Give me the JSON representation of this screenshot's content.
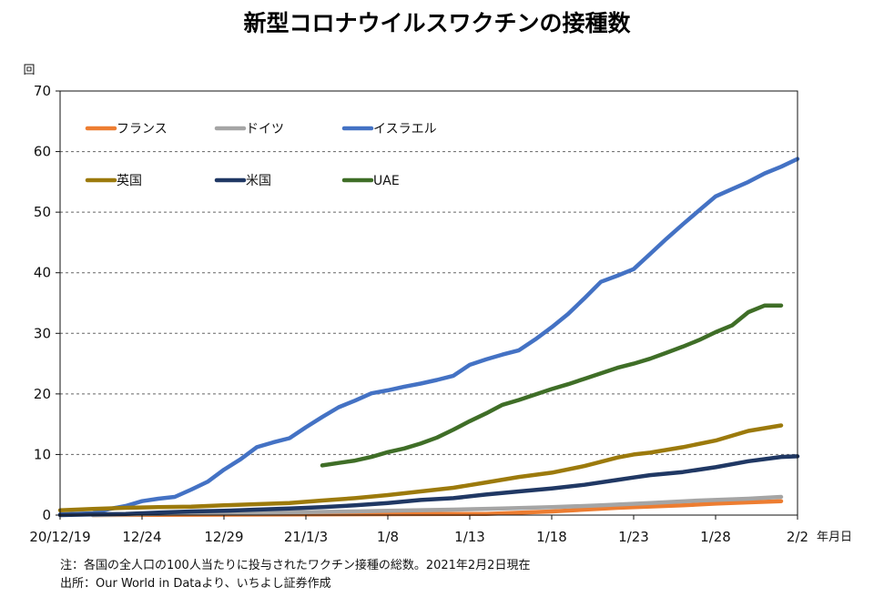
{
  "chart_data": {
    "type": "line",
    "title": "新型コロナウイルスワクチンの接種数",
    "ylabel": "回",
    "xunit": "年月日",
    "ylim": [
      0,
      70
    ],
    "yticks": [
      0,
      10,
      20,
      30,
      40,
      50,
      60,
      70
    ],
    "xlim": [
      0,
      45
    ],
    "x_dates": [
      "20/12/19",
      "12/20",
      "12/21",
      "12/22",
      "12/23",
      "12/24",
      "12/25",
      "12/26",
      "12/27",
      "12/28",
      "12/29",
      "12/30",
      "12/31",
      "21/1/1",
      "1/2",
      "1/3",
      "1/4",
      "1/5",
      "1/6",
      "1/7",
      "1/8",
      "1/9",
      "1/10",
      "1/11",
      "1/12",
      "1/13",
      "1/14",
      "1/15",
      "1/16",
      "1/17",
      "1/18",
      "1/19",
      "1/20",
      "1/21",
      "1/22",
      "1/23",
      "1/24",
      "1/25",
      "1/26",
      "1/27",
      "1/28",
      "1/29",
      "1/30",
      "1/31",
      "2/1",
      "2/2"
    ],
    "xticks": [
      {
        "x": 0,
        "label": "20/12/19"
      },
      {
        "x": 5,
        "label": "12/24"
      },
      {
        "x": 10,
        "label": "12/29"
      },
      {
        "x": 15,
        "label": "21/1/3"
      },
      {
        "x": 20,
        "label": "1/8"
      },
      {
        "x": 25,
        "label": "1/13"
      },
      {
        "x": 30,
        "label": "1/18"
      },
      {
        "x": 35,
        "label": "1/23"
      },
      {
        "x": 40,
        "label": "1/28"
      },
      {
        "x": 45,
        "label": "2/2"
      }
    ],
    "legend_position": "top-left",
    "gridlines": "horizontal-dashed",
    "series": [
      {
        "name": "フランス",
        "color": "#ED7D31",
        "x": [
          2,
          26,
          30,
          34,
          38,
          40,
          42,
          44
        ],
        "y": [
          0.0,
          0.2,
          0.6,
          1.2,
          1.6,
          1.9,
          2.1,
          2.3
        ]
      },
      {
        "name": "ドイツ",
        "color": "#A5A5A5",
        "x": [
          2,
          8,
          15,
          18,
          20,
          24,
          27,
          30,
          33,
          36,
          39,
          42,
          44
        ],
        "y": [
          0.0,
          0.3,
          0.5,
          0.6,
          0.7,
          0.9,
          1.1,
          1.3,
          1.6,
          2.0,
          2.4,
          2.7,
          3.0
        ]
      },
      {
        "name": "イスラエル",
        "color": "#4472C4",
        "x": [
          0,
          2,
          3,
          4,
          5,
          6,
          7,
          8,
          9,
          10,
          11,
          12,
          13,
          14,
          15,
          16,
          17,
          18,
          19,
          20,
          21,
          22,
          23,
          24,
          25,
          26,
          27,
          28,
          29,
          30,
          31,
          32,
          33,
          34,
          35,
          36,
          37,
          38,
          39,
          40,
          41,
          42,
          43,
          44,
          45
        ],
        "y": [
          0.1,
          0.3,
          1.0,
          1.5,
          2.3,
          2.7,
          3.0,
          4.2,
          5.5,
          7.5,
          9.2,
          11.2,
          12.0,
          12.7,
          14.5,
          16.2,
          17.8,
          18.9,
          20.1,
          20.6,
          21.2,
          21.7,
          22.3,
          23.0,
          24.8,
          25.7,
          26.5,
          27.2,
          29.0,
          31.0,
          33.2,
          35.8,
          38.5,
          39.5,
          40.6,
          43.1,
          45.6,
          48.0,
          50.3,
          52.6,
          53.8,
          55.0,
          56.4,
          57.5,
          58.8
        ]
      },
      {
        "name": "英国",
        "color": "#9C7A0C",
        "x": [
          0,
          2,
          4,
          6,
          8,
          10,
          12,
          14,
          16,
          18,
          20,
          22,
          24,
          26,
          28,
          30,
          32,
          34,
          35,
          36,
          38,
          40,
          42,
          44
        ],
        "y": [
          0.8,
          1.0,
          1.2,
          1.3,
          1.4,
          1.6,
          1.8,
          2.0,
          2.4,
          2.8,
          3.3,
          3.9,
          4.5,
          5.4,
          6.3,
          7.0,
          8.1,
          9.5,
          10.0,
          10.3,
          11.2,
          12.3,
          13.9,
          14.8
        ]
      },
      {
        "name": "米国",
        "color": "#203864",
        "x": [
          0,
          2,
          4,
          6,
          8,
          10,
          12,
          14,
          16,
          18,
          20,
          22,
          24,
          26,
          28,
          30,
          32,
          34,
          35,
          36,
          38,
          40,
          42,
          44,
          45
        ],
        "y": [
          0.0,
          0.1,
          0.2,
          0.4,
          0.6,
          0.7,
          0.9,
          1.1,
          1.3,
          1.6,
          2.0,
          2.5,
          2.8,
          3.4,
          3.9,
          4.4,
          5.0,
          5.8,
          6.2,
          6.6,
          7.1,
          7.9,
          8.9,
          9.6,
          9.7
        ]
      },
      {
        "name": "UAE",
        "color": "#3F6E27",
        "x": [
          16,
          17,
          18,
          19,
          20,
          21,
          22,
          23,
          24,
          25,
          26,
          27,
          28,
          29,
          30,
          31,
          32,
          33,
          34,
          35,
          36,
          37,
          38,
          39,
          40,
          41,
          42,
          43,
          44
        ],
        "y": [
          8.2,
          8.6,
          9.0,
          9.6,
          10.4,
          11.0,
          11.8,
          12.8,
          14.1,
          15.5,
          16.8,
          18.2,
          19.0,
          19.9,
          20.8,
          21.6,
          22.5,
          23.4,
          24.3,
          25.0,
          25.8,
          26.8,
          27.8,
          28.9,
          30.2,
          31.3,
          33.5,
          34.6,
          34.6
        ]
      }
    ]
  },
  "notes": {
    "line1": "注：各国の全人口の100人当たりに投与されたワクチン接種の総数。2021年2月2日現在",
    "line2": "出所：Our World in Dataより、いちよし証券作成"
  }
}
